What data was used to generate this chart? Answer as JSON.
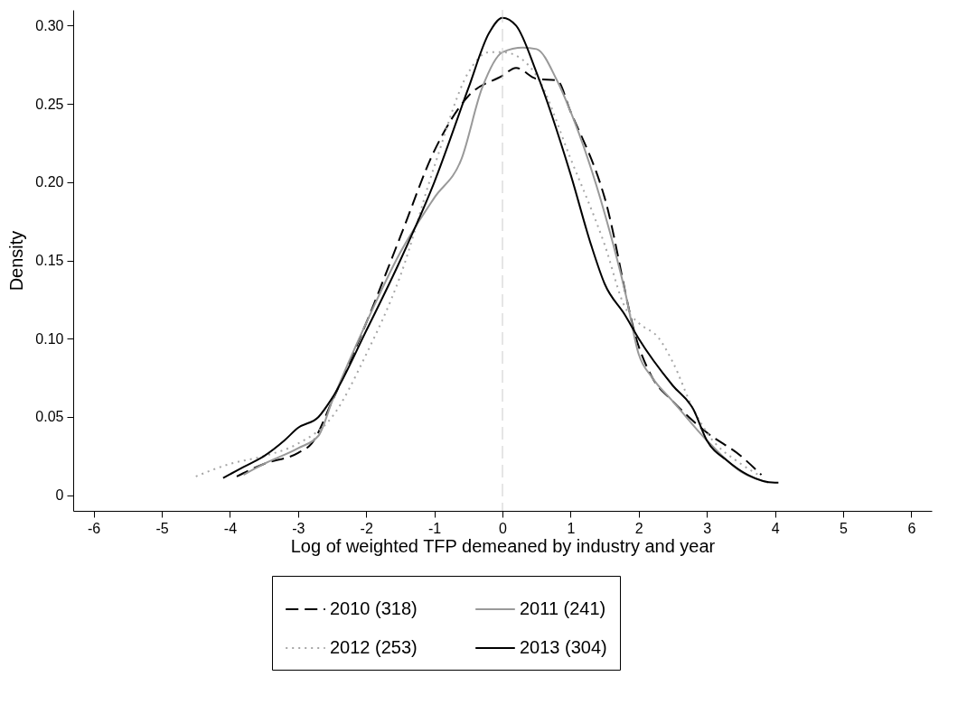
{
  "chart_data": {
    "type": "line",
    "xlabel": "Log of weighted TFP demeaned by industry and year",
    "ylabel": "Density",
    "xlim": [
      -6.3,
      6.3
    ],
    "xticks": [
      -6,
      -5,
      -4,
      -3,
      -2,
      -1,
      0,
      1,
      2,
      3,
      4,
      5,
      6
    ],
    "ylim": [
      -0.01,
      0.31
    ],
    "yticks": [
      0,
      {
        "value": 0.05,
        "label": "0.05"
      },
      {
        "value": 0.1,
        "label": "0.10"
      },
      {
        "value": 0.15,
        "label": "0.15"
      },
      {
        "value": 0.2,
        "label": "0.20"
      },
      {
        "value": 0.25,
        "label": "0.25"
      },
      {
        "value": 0.3,
        "label": "0.30"
      }
    ],
    "grid": false,
    "legend": "bottom",
    "marker": "none",
    "ref_lines": [
      {
        "axis": "x",
        "value": 0,
        "color": "#cccccc",
        "line_style": "dashed"
      }
    ],
    "series": [
      {
        "name": "2010 (318)",
        "color": "#000000",
        "line_style": "dashed",
        "x": [
          -3.9,
          -3.5,
          -3.0,
          -2.8,
          -2.5,
          -2.0,
          -1.5,
          -1.0,
          -0.5,
          0,
          0.2,
          0.5,
          0.8,
          1.0,
          1.5,
          2.0,
          2.2,
          2.5,
          3.0,
          3.5,
          3.8
        ],
        "values": [
          0.012,
          0.02,
          0.027,
          0.033,
          0.06,
          0.11,
          0.165,
          0.22,
          0.255,
          0.268,
          0.273,
          0.266,
          0.265,
          0.245,
          0.19,
          0.095,
          0.075,
          0.06,
          0.04,
          0.025,
          0.013
        ]
      },
      {
        "name": "2011 (241)",
        "color": "#999999",
        "line_style": "solid",
        "x": [
          -3.8,
          -3.5,
          -3.0,
          -2.7,
          -2.5,
          -2.0,
          -1.5,
          -1.0,
          -0.6,
          -0.3,
          0,
          0.3,
          0.5,
          0.8,
          1.0,
          1.5,
          1.8,
          2.0,
          2.2,
          2.5,
          3.0,
          3.5,
          3.9
        ],
        "values": [
          0.013,
          0.02,
          0.03,
          0.038,
          0.06,
          0.11,
          0.155,
          0.19,
          0.215,
          0.26,
          0.283,
          0.286,
          0.285,
          0.265,
          0.245,
          0.18,
          0.13,
          0.09,
          0.075,
          0.06,
          0.035,
          0.015,
          0.008
        ]
      },
      {
        "name": "2012 (253)",
        "color": "#a6a6a6",
        "line_style": "dotted",
        "x": [
          -4.5,
          -4.0,
          -3.5,
          -3.0,
          -2.5,
          -2.0,
          -1.5,
          -1.0,
          -0.5,
          -0.2,
          0,
          0.3,
          0.5,
          1.0,
          1.5,
          1.8,
          2.0,
          2.3,
          2.5,
          2.8,
          3.0,
          3.5,
          3.8
        ],
        "values": [
          0.012,
          0.02,
          0.025,
          0.033,
          0.05,
          0.09,
          0.14,
          0.21,
          0.27,
          0.283,
          0.283,
          0.278,
          0.268,
          0.215,
          0.16,
          0.12,
          0.11,
          0.1,
          0.085,
          0.055,
          0.04,
          0.02,
          0.012
        ]
      },
      {
        "name": "2013 (304)",
        "color": "#000000",
        "line_style": "solid",
        "x": [
          -4.1,
          -3.8,
          -3.5,
          -3.2,
          -3.0,
          -2.7,
          -2.5,
          -2.0,
          -1.5,
          -1.0,
          -0.5,
          -0.2,
          0,
          0.2,
          0.5,
          1.0,
          1.3,
          1.5,
          1.8,
          2.0,
          2.5,
          2.8,
          3.0,
          3.3,
          3.6,
          4.0,
          4.05
        ],
        "values": [
          0.011,
          0.018,
          0.025,
          0.035,
          0.043,
          0.05,
          0.062,
          0.105,
          0.15,
          0.2,
          0.26,
          0.295,
          0.305,
          0.3,
          0.27,
          0.205,
          0.16,
          0.135,
          0.115,
          0.1,
          0.07,
          0.055,
          0.035,
          0.022,
          0.013,
          0.008,
          0.008
        ]
      }
    ]
  }
}
